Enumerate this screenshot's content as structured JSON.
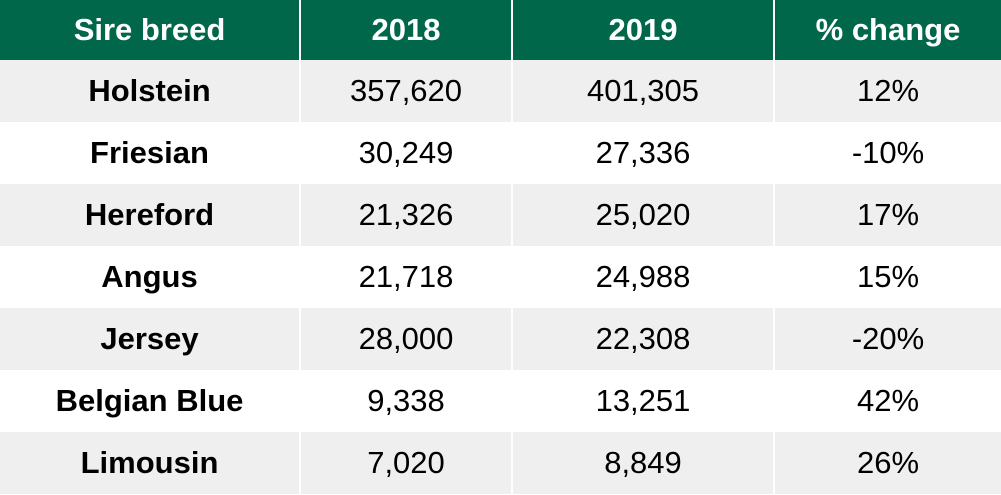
{
  "table": {
    "header": [
      "Sire breed",
      "2018",
      "2019",
      "% change"
    ],
    "rows": [
      [
        "Holstein",
        "357,620",
        "401,305",
        "12%"
      ],
      [
        "Friesian",
        "30,249",
        "27,336",
        "-10%"
      ],
      [
        "Hereford",
        "21,326",
        "25,020",
        "17%"
      ],
      [
        "Angus",
        "21,718",
        "24,988",
        "15%"
      ],
      [
        "Jersey",
        "28,000",
        "22,308",
        "-20%"
      ],
      [
        "Belgian Blue",
        "9,338",
        "13,251",
        "42%"
      ],
      [
        "Limousin",
        "7,020",
        "8,849",
        "26%"
      ]
    ]
  }
}
